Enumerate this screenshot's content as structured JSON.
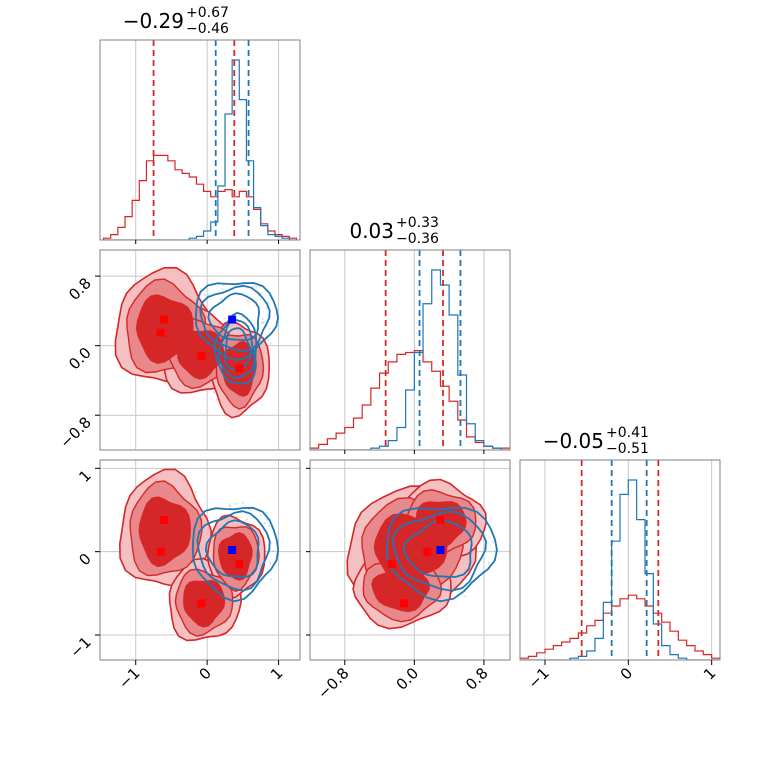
{
  "colors": {
    "red": "#d62728",
    "red_mid": "#e8888a",
    "red_light": "#f4c0c1",
    "blue": "#1f77b4",
    "marker_red": "#ff0000",
    "marker_blue": "#0000ff",
    "grid": "#c8c8c8",
    "frame": "#808080"
  },
  "chart_data": {
    "type": "corner",
    "parameters": [
      "p0",
      "p1",
      "p2"
    ],
    "axis_ranges": {
      "p0": [
        -1.5,
        1.3
      ],
      "p1": [
        -1.2,
        1.1
      ],
      "p2": [
        -1.3,
        1.1
      ]
    },
    "titles": [
      {
        "param": "p0",
        "median": "−0.29",
        "plus": "+0.67",
        "minus": "−0.46"
      },
      {
        "param": "p1",
        "median": "0.03",
        "plus": "+0.33",
        "minus": "−0.36"
      },
      {
        "param": "p2",
        "median": "−0.05",
        "plus": "+0.41",
        "minus": "−0.51"
      }
    ],
    "ticks": {
      "p0": {
        "values": [
          -1,
          0,
          1
        ],
        "labels": [
          "−1",
          "0",
          "1"
        ]
      },
      "p1": {
        "values": [
          -0.8,
          0.0,
          0.8
        ],
        "labels": [
          "−0.8",
          "0.0",
          "0.8"
        ]
      },
      "p2": {
        "values": [
          -1,
          0,
          1
        ],
        "labels": [
          "−1",
          "0",
          "1"
        ]
      }
    },
    "series": [
      {
        "name": "red",
        "color": "#d62728",
        "quantiles": {
          "p0": [
            -0.75,
            0.38
          ],
          "p1": [
            -0.33,
            0.33
          ],
          "p2": [
            -0.56,
            0.36
          ]
        },
        "modes": [
          [
            -0.6,
            0.3,
            0.38
          ],
          [
            -0.65,
            0.15,
            0.0
          ],
          [
            -0.08,
            -0.12,
            -0.62
          ],
          [
            0.45,
            -0.26,
            -0.15
          ]
        ]
      },
      {
        "name": "blue",
        "color": "#1f77b4",
        "quantiles": {
          "p0": [
            0.12,
            0.58
          ],
          "p1": [
            0.06,
            0.53
          ],
          "p2": [
            -0.2,
            0.22
          ]
        },
        "modes": [
          [
            0.35,
            0.3,
            0.02
          ]
        ]
      }
    ],
    "histograms": {
      "p0": {
        "x": [
          -1.4,
          -1.3,
          -1.2,
          -1.1,
          -1.0,
          -0.9,
          -0.8,
          -0.7,
          -0.6,
          -0.5,
          -0.4,
          -0.3,
          -0.2,
          -0.1,
          0.0,
          0.1,
          0.2,
          0.3,
          0.4,
          0.5,
          0.6,
          0.7,
          0.8,
          0.9,
          1.0,
          1.1,
          1.2
        ],
        "red": [
          0.01,
          0.03,
          0.07,
          0.13,
          0.22,
          0.33,
          0.44,
          0.47,
          0.47,
          0.44,
          0.39,
          0.37,
          0.35,
          0.31,
          0.27,
          0.24,
          0.27,
          0.28,
          0.24,
          0.27,
          0.24,
          0.17,
          0.09,
          0.05,
          0.03,
          0.02,
          0.01
        ],
        "blue": [
          0,
          0,
          0,
          0,
          0,
          0,
          0,
          0,
          0,
          0,
          0,
          0,
          0.01,
          0.02,
          0.05,
          0.1,
          0.3,
          0.7,
          1.0,
          0.78,
          0.44,
          0.18,
          0.08,
          0.03,
          0.02,
          0.01,
          0
        ]
      },
      "p1": {
        "x": [
          -1.15,
          -1.05,
          -0.95,
          -0.85,
          -0.75,
          -0.65,
          -0.55,
          -0.45,
          -0.35,
          -0.25,
          -0.15,
          -0.05,
          0.05,
          0.15,
          0.25,
          0.35,
          0.45,
          0.55,
          0.65,
          0.75,
          0.85,
          0.95,
          1.05
        ],
        "red": [
          0.01,
          0.03,
          0.06,
          0.09,
          0.12,
          0.17,
          0.24,
          0.33,
          0.41,
          0.47,
          0.51,
          0.52,
          0.53,
          0.47,
          0.42,
          0.34,
          0.26,
          0.16,
          0.07,
          0.04,
          0.02,
          0.01,
          0.01
        ],
        "blue": [
          0,
          0,
          0,
          0,
          0,
          0,
          0,
          0.01,
          0.02,
          0.05,
          0.12,
          0.32,
          0.52,
          0.78,
          0.96,
          0.88,
          0.72,
          0.4,
          0.14,
          0.05,
          0.02,
          0.01,
          0
        ]
      },
      "p2": {
        "x": [
          -1.25,
          -1.15,
          -1.05,
          -0.95,
          -0.85,
          -0.75,
          -0.65,
          -0.55,
          -0.45,
          -0.35,
          -0.25,
          -0.15,
          -0.05,
          0.05,
          0.15,
          0.25,
          0.35,
          0.45,
          0.55,
          0.65,
          0.75,
          0.85,
          0.95,
          1.05
        ],
        "red": [
          0.01,
          0.02,
          0.04,
          0.06,
          0.08,
          0.1,
          0.12,
          0.15,
          0.19,
          0.22,
          0.26,
          0.3,
          0.34,
          0.36,
          0.34,
          0.3,
          0.26,
          0.21,
          0.16,
          0.11,
          0.08,
          0.05,
          0.03,
          0.01
        ],
        "blue": [
          0,
          0,
          0,
          0,
          0,
          0,
          0.01,
          0.02,
          0.05,
          0.12,
          0.32,
          0.66,
          0.92,
          1.0,
          0.78,
          0.48,
          0.2,
          0.08,
          0.03,
          0.01,
          0,
          0,
          0,
          0
        ]
      }
    },
    "contours": {
      "p0_p1": {
        "red_blobs": [
          [
            -0.6,
            0.2,
            0.55,
            0.52
          ],
          [
            -0.1,
            -0.08,
            0.45,
            0.38
          ],
          [
            0.45,
            -0.26,
            0.33,
            0.42
          ]
        ],
        "blue_blobs": [
          [
            0.4,
            0.32,
            0.5,
            0.38
          ],
          [
            0.42,
            -0.05,
            0.25,
            0.35
          ]
        ]
      },
      "p0_p2": {
        "red_blobs": [
          [
            -0.6,
            0.25,
            0.5,
            0.55
          ],
          [
            -0.05,
            -0.6,
            0.4,
            0.38
          ],
          [
            0.4,
            -0.05,
            0.32,
            0.38
          ]
        ],
        "blue_blobs": [
          [
            0.38,
            0.02,
            0.52,
            0.48
          ]
        ]
      },
      "p1_p2": {
        "red_blobs": [
          [
            -0.05,
            0.05,
            0.58,
            0.55
          ],
          [
            0.3,
            0.35,
            0.4,
            0.38
          ],
          [
            -0.15,
            -0.45,
            0.45,
            0.35
          ]
        ],
        "blue_blobs": [
          [
            0.3,
            0.02,
            0.55,
            0.48
          ]
        ]
      }
    }
  }
}
